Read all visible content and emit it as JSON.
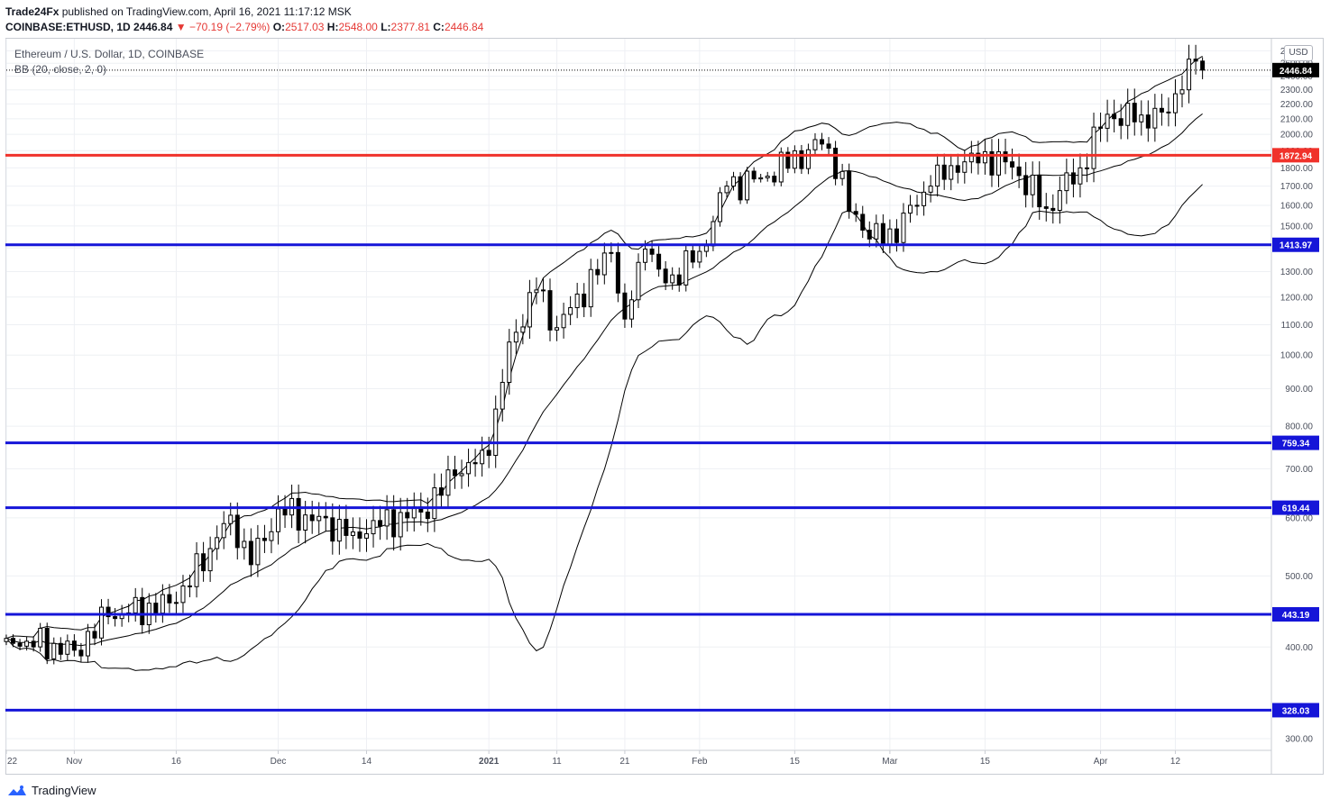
{
  "header": {
    "author": "Trade24Fx",
    "published_text": " published on TradingView.com, April 16, 2021 11:17:12 MSK",
    "symbol": "COINBASE:ETHUSD, 1D",
    "price": "2446.84",
    "change": "▼ −70.19 (−2.79%)",
    "o_label": "O:",
    "o": "2517.03",
    "h_label": "H:",
    "h": "2548.00",
    "l_label": "L:",
    "l": "2377.81",
    "c_label": "C:",
    "c": "2446.84"
  },
  "legend": {
    "title": "Ethereum / U.S. Dollar, 1D, COINBASE",
    "indicator": "BB (20, close, 2, 0)"
  },
  "currency": "USD",
  "footer": {
    "brand": "TradingView",
    "logo_icon": "tradingview-logo-icon"
  },
  "colors": {
    "up_body": "#ffffff",
    "down_body": "#000000",
    "wick": "#000000",
    "resistance": "#f0322b",
    "support": "#1515d8",
    "bands": "#000000",
    "grid": "#eef0f4",
    "axis_text": "#4a4f5c",
    "price_tag": "#000000"
  },
  "chart_data": {
    "type": "candlestick",
    "title": "Ethereum / U.S. Dollar, 1D, COINBASE",
    "y_scale": "log",
    "ylim": [
      290,
      2700
    ],
    "yticks": [
      300,
      400,
      500,
      600,
      700,
      800,
      900,
      1000,
      1100,
      1200,
      1300,
      1400,
      1500,
      1600,
      1700,
      1800,
      1900,
      2000,
      2100,
      2200,
      2300,
      2400,
      2500,
      2600
    ],
    "xlim": [
      "2020-10-22",
      "2021-04-26"
    ],
    "xticks": [
      {
        "date": "2020-10-22",
        "label": "22"
      },
      {
        "date": "2020-11-01",
        "label": "Nov"
      },
      {
        "date": "2020-11-16",
        "label": "16"
      },
      {
        "date": "2020-12-01",
        "label": "Dec"
      },
      {
        "date": "2020-12-14",
        "label": "14"
      },
      {
        "date": "2021-01-01",
        "label": "2021"
      },
      {
        "date": "2021-01-11",
        "label": "11"
      },
      {
        "date": "2021-01-21",
        "label": "21"
      },
      {
        "date": "2021-02-01",
        "label": "Feb"
      },
      {
        "date": "2021-02-15",
        "label": "15"
      },
      {
        "date": "2021-03-01",
        "label": "Mar"
      },
      {
        "date": "2021-03-15",
        "label": "15"
      },
      {
        "date": "2021-04-01",
        "label": "Apr"
      },
      {
        "date": "2021-04-12",
        "label": "12"
      }
    ],
    "last_price": 2446.84,
    "horizontal_levels": [
      {
        "value": 1872.94,
        "label": "1872.94",
        "kind": "resistance"
      },
      {
        "value": 1413.97,
        "label": "1413.97",
        "kind": "support"
      },
      {
        "value": 759.34,
        "label": "759.34",
        "kind": "support"
      },
      {
        "value": 619.44,
        "label": "619.44",
        "kind": "support"
      },
      {
        "value": 443.19,
        "label": "443.19",
        "kind": "support"
      },
      {
        "value": 328.03,
        "label": "328.03",
        "kind": "support"
      }
    ],
    "key_closes": [
      {
        "date": "2020-10-22",
        "close": 411
      },
      {
        "date": "2020-11-01",
        "close": 396
      },
      {
        "date": "2020-11-06",
        "close": 440
      },
      {
        "date": "2020-11-16",
        "close": 460
      },
      {
        "date": "2020-11-24",
        "close": 605
      },
      {
        "date": "2020-11-27",
        "close": 518
      },
      {
        "date": "2020-12-01",
        "close": 617
      },
      {
        "date": "2020-12-12",
        "close": 574
      },
      {
        "date": "2020-12-22",
        "close": 611
      },
      {
        "date": "2020-12-27",
        "close": 685
      },
      {
        "date": "2021-01-01",
        "close": 730
      },
      {
        "date": "2021-01-04",
        "close": 1042
      },
      {
        "date": "2021-01-08",
        "close": 1227
      },
      {
        "date": "2021-01-11",
        "close": 1090
      },
      {
        "date": "2021-01-19",
        "close": 1380
      },
      {
        "date": "2021-01-21",
        "close": 1120
      },
      {
        "date": "2021-01-24",
        "close": 1395
      },
      {
        "date": "2021-01-27",
        "close": 1255
      },
      {
        "date": "2021-02-01",
        "close": 1385
      },
      {
        "date": "2021-02-05",
        "close": 1700
      },
      {
        "date": "2021-02-10",
        "close": 1745
      },
      {
        "date": "2021-02-19",
        "close": 1940
      },
      {
        "date": "2021-02-22",
        "close": 1780
      },
      {
        "date": "2021-02-23",
        "close": 1570
      },
      {
        "date": "2021-02-28",
        "close": 1415
      },
      {
        "date": "2021-03-07",
        "close": 1700
      },
      {
        "date": "2021-03-13",
        "close": 1885
      },
      {
        "date": "2021-03-19",
        "close": 1805
      },
      {
        "date": "2021-03-24",
        "close": 1585
      },
      {
        "date": "2021-03-29",
        "close": 1800
      },
      {
        "date": "2021-04-02",
        "close": 2130
      },
      {
        "date": "2021-04-06",
        "close": 2080
      },
      {
        "date": "2021-04-10",
        "close": 2145
      },
      {
        "date": "2021-04-13",
        "close": 2300
      },
      {
        "date": "2021-04-15",
        "close": 2517
      },
      {
        "date": "2021-04-16",
        "close": 2446.84
      }
    ],
    "bollinger": {
      "period": 20,
      "source": "close",
      "stddev": 2,
      "offset": 0
    }
  }
}
